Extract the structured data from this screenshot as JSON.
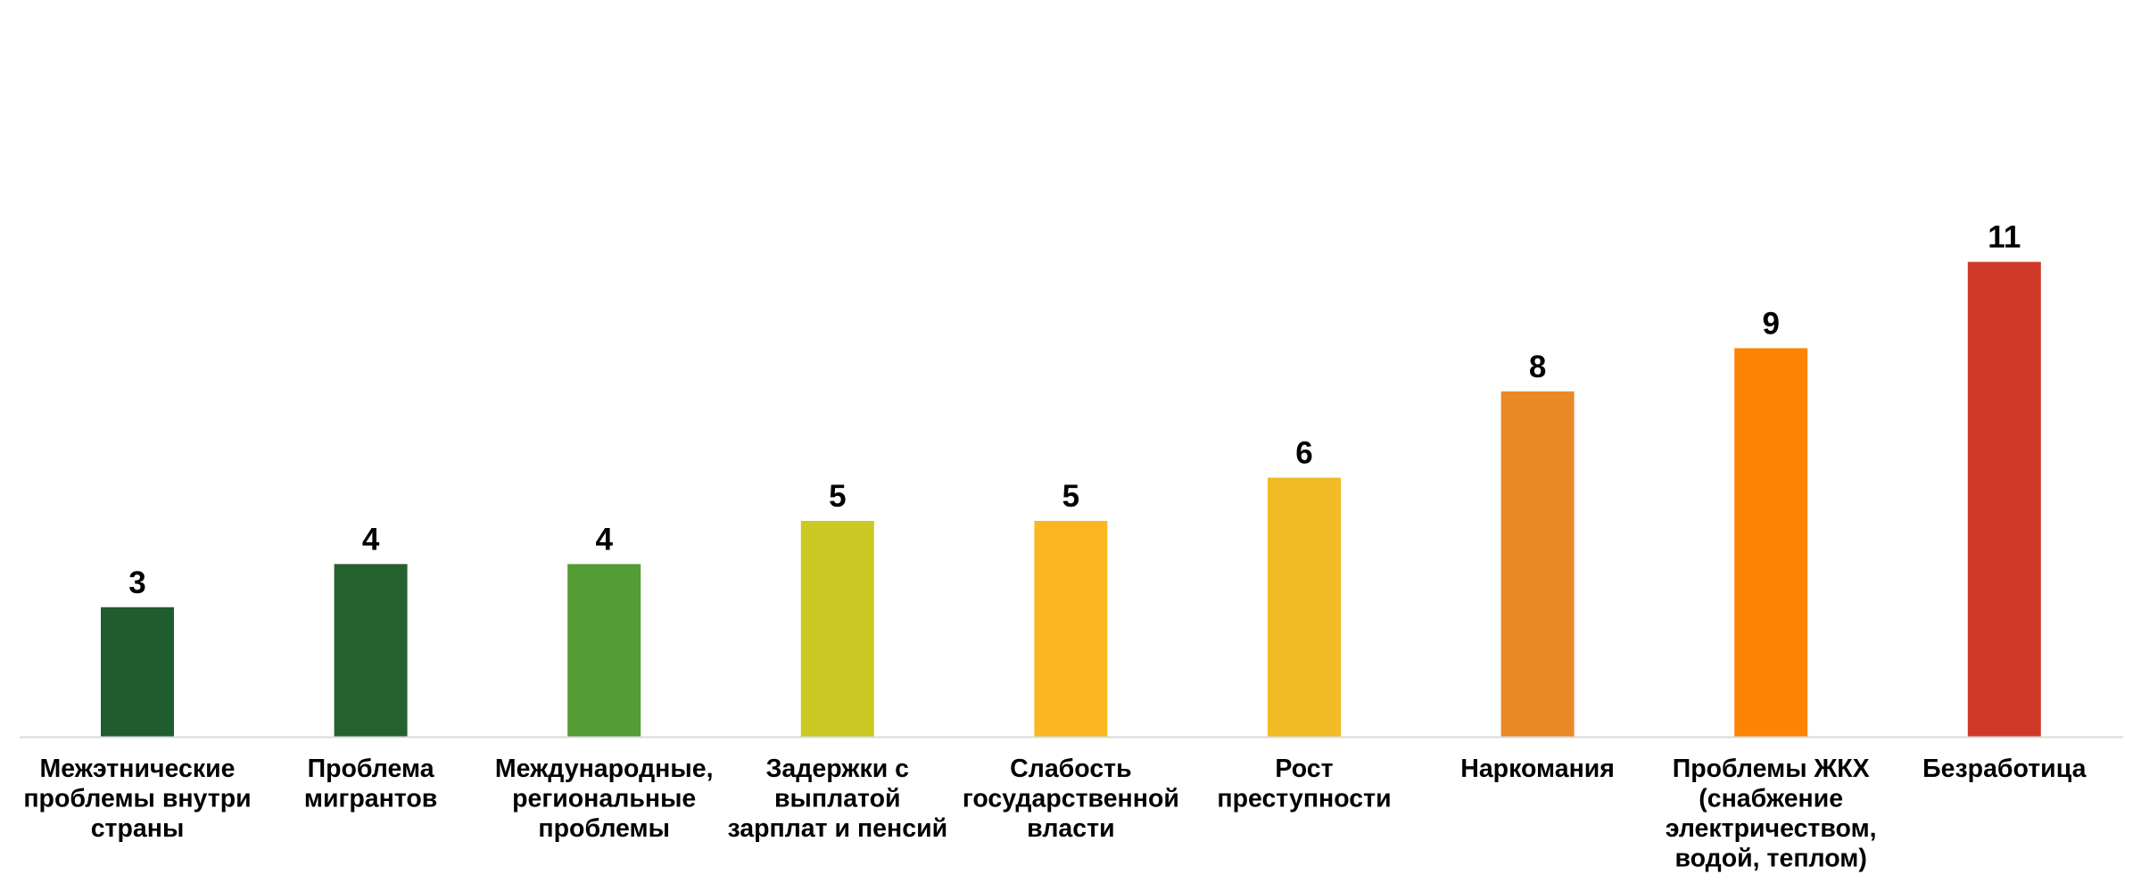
{
  "chart_data": {
    "type": "bar",
    "title": "",
    "xlabel": "",
    "ylabel": "",
    "ylim": [
      0,
      11
    ],
    "grid": false,
    "legend": "none",
    "data_labels": true,
    "categories": [
      [
        "Межэтнические",
        "проблемы внутри",
        "страны"
      ],
      [
        "Проблема",
        "мигрантов"
      ],
      [
        "Международные,",
        "региональные",
        "проблемы"
      ],
      [
        "Задержки с",
        "выплатой",
        "зарплат и пенсий"
      ],
      [
        "Слабость",
        "государственной",
        "власти"
      ],
      [
        "Рост",
        "преступности"
      ],
      [
        "Наркомания"
      ],
      [
        "Проблемы ЖКХ",
        "(снабжение",
        "электричеством,",
        "водой, теплом)"
      ],
      [
        "Безработица"
      ]
    ],
    "values": [
      3,
      4,
      4,
      5,
      5,
      6,
      8,
      9,
      11
    ],
    "colors": [
      "#1f5c2e",
      "#23622e",
      "#549c34",
      "#ccc823",
      "#fbb722",
      "#f0bb24",
      "#ea8827",
      "#fd8305",
      "#cf3a28"
    ],
    "axis_color": "#d9d9d9"
  }
}
